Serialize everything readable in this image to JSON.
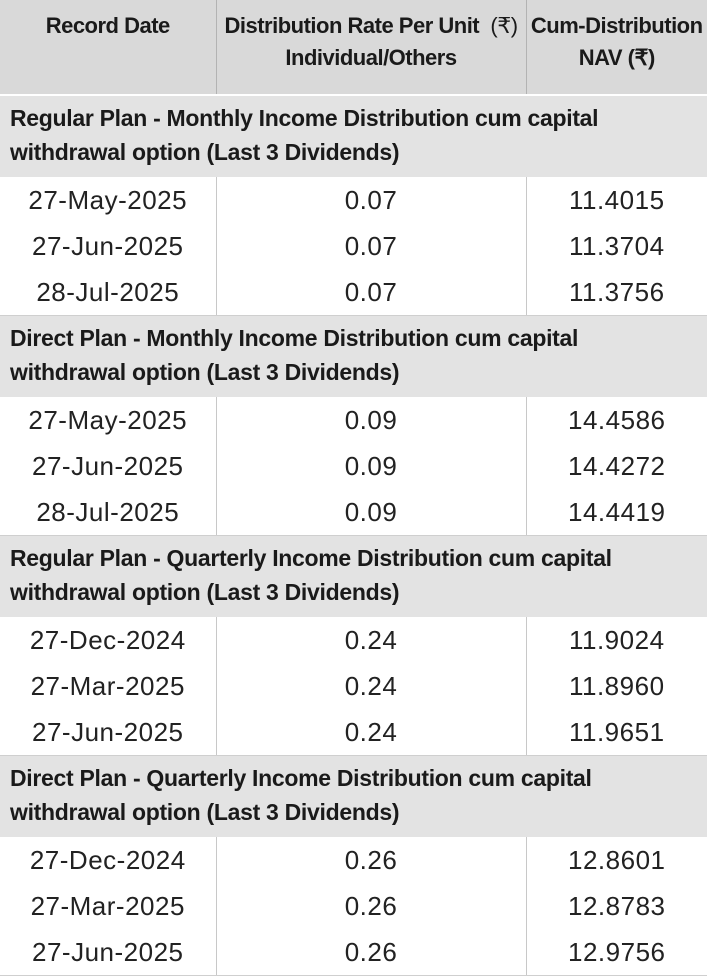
{
  "header": {
    "record_date": "Record Date",
    "rate_line1": "Distribution Rate Per Unit",
    "rate_currency": "(₹)",
    "rate_line2": "Individual/Others",
    "nav_line1": "Cum-Distribution",
    "nav_line2": "NAV (₹)"
  },
  "sections": [
    {
      "title": "Regular Plan - Monthly Income Distribution cum capital withdrawal option (Last 3 Dividends)",
      "rows": [
        {
          "date": "27-May-2025",
          "rate": "0.07",
          "nav": "11.4015"
        },
        {
          "date": "27-Jun-2025",
          "rate": "0.07",
          "nav": "11.3704"
        },
        {
          "date": "28-Jul-2025",
          "rate": "0.07",
          "nav": "11.3756"
        }
      ]
    },
    {
      "title": "Direct Plan - Monthly Income Distribution cum capital withdrawal option (Last 3 Dividends)",
      "rows": [
        {
          "date": "27-May-2025",
          "rate": "0.09",
          "nav": "14.4586"
        },
        {
          "date": "27-Jun-2025",
          "rate": "0.09",
          "nav": "14.4272"
        },
        {
          "date": "28-Jul-2025",
          "rate": "0.09",
          "nav": "14.4419"
        }
      ]
    },
    {
      "title": "Regular Plan - Quarterly Income Distribution cum capital withdrawal option (Last 3 Dividends)",
      "rows": [
        {
          "date": "27-Dec-2024",
          "rate": "0.24",
          "nav": "11.9024"
        },
        {
          "date": "27-Mar-2025",
          "rate": "0.24",
          "nav": "11.8960"
        },
        {
          "date": "27-Jun-2025",
          "rate": "0.24",
          "nav": "11.9651"
        }
      ]
    },
    {
      "title": "Direct Plan - Quarterly Income Distribution cum capital withdrawal option (Last 3 Dividends)",
      "rows": [
        {
          "date": "27-Dec-2024",
          "rate": "0.26",
          "nav": "12.8601"
        },
        {
          "date": "27-Mar-2025",
          "rate": "0.26",
          "nav": "12.8783"
        },
        {
          "date": "27-Jun-2025",
          "rate": "0.26",
          "nav": "12.9756"
        }
      ]
    }
  ]
}
